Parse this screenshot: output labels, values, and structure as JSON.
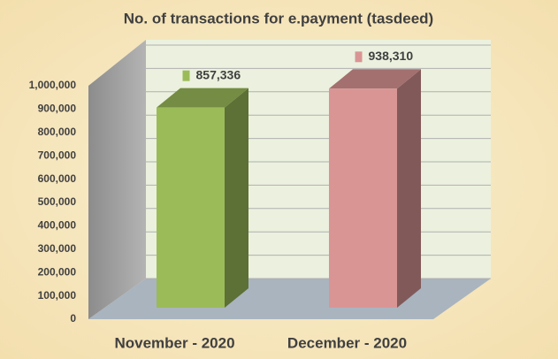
{
  "chart_data": {
    "type": "bar3d",
    "title": "No. of transactions for e.payment (tasdeed)",
    "categories": [
      "November - 2020",
      "December - 2020"
    ],
    "series": [
      {
        "values": [
          857336,
          938310
        ],
        "value_labels": [
          "857,336",
          "938,310"
        ],
        "colors": [
          "#9bbb59",
          "#d99594"
        ]
      }
    ],
    "ylim": [
      0,
      1000000
    ],
    "yticks": [
      0,
      {
        "value": 100000,
        "label": "100,000"
      },
      {
        "value": 200000,
        "label": "200,000"
      },
      {
        "value": 300000,
        "label": "300,000"
      },
      {
        "value": 400000,
        "label": "400,000"
      },
      {
        "value": 500000,
        "label": "500,000"
      },
      {
        "value": 600000,
        "label": "600,000"
      },
      {
        "value": 700000,
        "label": "700,000"
      },
      {
        "value": 800000,
        "label": "800,000"
      },
      {
        "value": 900000,
        "label": "900,000"
      },
      {
        "value": 1000000,
        "label": "1,000,000"
      }
    ],
    "grid": true
  }
}
